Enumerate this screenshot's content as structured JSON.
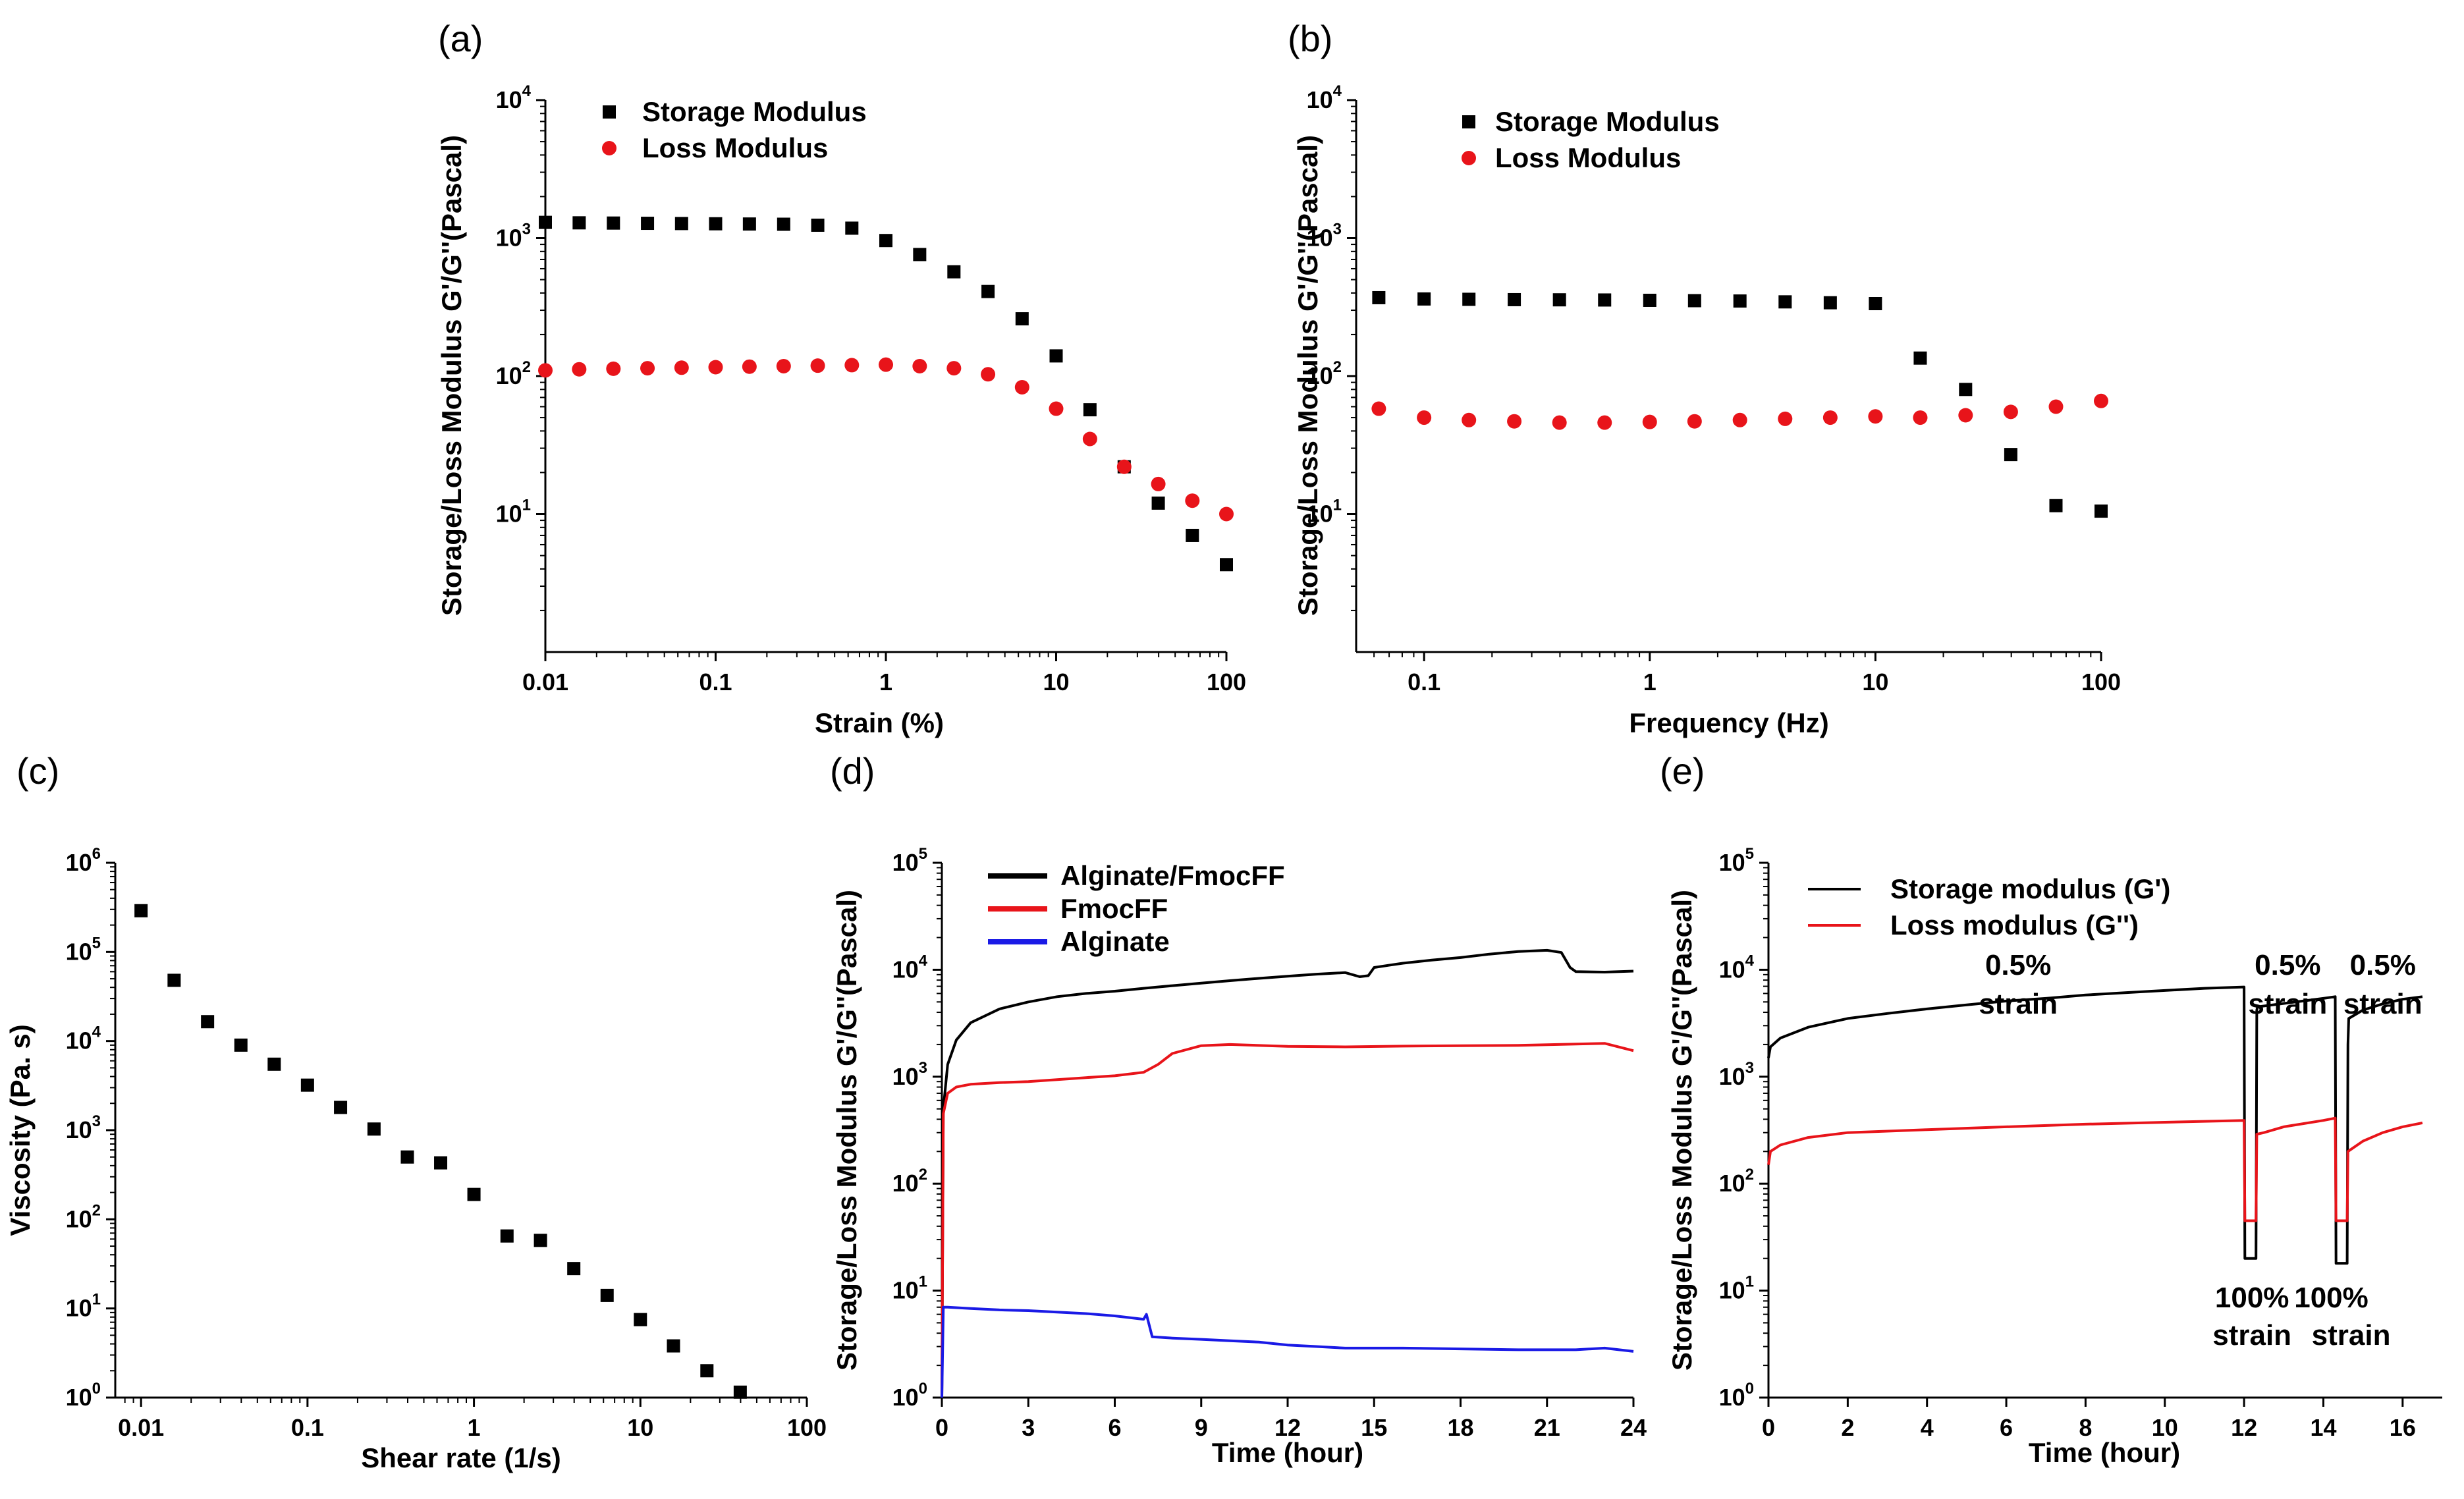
{
  "chart_data": [
    {
      "type": "scatter",
      "panel_label": "(a)",
      "xlabel": "Strain (%)",
      "ylabel": "Storage/Loss Modulus G'/G''(Pascal)",
      "xscale": "log",
      "yscale": "log",
      "xlim": [
        0.01,
        100
      ],
      "ylim": [
        1,
        10000
      ],
      "xticks": [
        {
          "v": 0.01,
          "t": "0.01"
        },
        {
          "v": 0.1,
          "t": "0.1"
        },
        {
          "v": 1,
          "t": "1"
        },
        {
          "v": 10,
          "t": "10"
        },
        {
          "v": 100,
          "t": "100"
        }
      ],
      "yticks": [
        {
          "v": 10,
          "e": "1"
        },
        {
          "v": 100,
          "e": "2"
        },
        {
          "v": 1000,
          "e": "3"
        },
        {
          "v": 10000,
          "e": "4"
        }
      ],
      "legend_position": "top-left",
      "series": [
        {
          "name": "Storage Modulus",
          "marker": "square",
          "color": "#000000",
          "x": [
            0.01,
            0.0158,
            0.0251,
            0.0398,
            0.0631,
            0.1,
            0.158,
            0.251,
            0.398,
            0.631,
            1,
            1.58,
            2.51,
            3.98,
            6.31,
            10,
            15.8,
            25.1,
            39.8,
            63.1,
            100
          ],
          "y": [
            1300,
            1290,
            1285,
            1280,
            1275,
            1270,
            1265,
            1260,
            1240,
            1180,
            960,
            760,
            570,
            410,
            260,
            140,
            57,
            22,
            12,
            7,
            4.3
          ]
        },
        {
          "name": "Loss Modulus",
          "marker": "circle",
          "color": "#e8141a",
          "x": [
            0.01,
            0.0158,
            0.0251,
            0.0398,
            0.0631,
            0.1,
            0.158,
            0.251,
            0.398,
            0.631,
            1,
            1.58,
            2.51,
            3.98,
            6.31,
            10,
            15.8,
            25.1,
            39.8,
            63.1,
            100
          ],
          "y": [
            110,
            112,
            113,
            114,
            115,
            116,
            117,
            118,
            119,
            120,
            121,
            118,
            114,
            103,
            83,
            58,
            35,
            22,
            16.5,
            12.5,
            10
          ]
        }
      ]
    },
    {
      "type": "scatter",
      "panel_label": "(b)",
      "xlabel": "Frequency (Hz)",
      "ylabel": "Storage/Loss Modulus G'/G''(Pascal)",
      "xscale": "log",
      "yscale": "log",
      "xlim": [
        0.05,
        100
      ],
      "ylim": [
        1,
        10000
      ],
      "xticks": [
        {
          "v": 0.1,
          "t": "0.1"
        },
        {
          "v": 1,
          "t": "1"
        },
        {
          "v": 10,
          "t": "10"
        },
        {
          "v": 100,
          "t": "100"
        }
      ],
      "yticks": [
        {
          "v": 10,
          "e": "1"
        },
        {
          "v": 100,
          "e": "2"
        },
        {
          "v": 1000,
          "e": "3"
        },
        {
          "v": 10000,
          "e": "4"
        }
      ],
      "legend_position": "top-left",
      "series": [
        {
          "name": "Storage Modulus",
          "marker": "square",
          "color": "#000000",
          "x": [
            0.063,
            0.1,
            0.158,
            0.251,
            0.398,
            0.631,
            1,
            1.58,
            2.51,
            3.98,
            6.31,
            10,
            15.8,
            25.1,
            39.8,
            63.1,
            100
          ],
          "y": [
            370,
            362,
            360,
            358,
            357,
            356,
            354,
            352,
            350,
            345,
            340,
            335,
            135,
            80,
            27,
            11.5,
            10.5
          ]
        },
        {
          "name": "Loss Modulus",
          "marker": "circle",
          "color": "#e8141a",
          "x": [
            0.063,
            0.1,
            0.158,
            0.251,
            0.398,
            0.631,
            1,
            1.58,
            2.51,
            3.98,
            6.31,
            10,
            15.8,
            25.1,
            39.8,
            63.1,
            100
          ],
          "y": [
            58,
            50,
            48,
            47,
            46,
            46,
            46.5,
            47,
            48,
            49,
            50,
            51,
            50,
            52,
            55,
            60,
            66
          ]
        }
      ]
    },
    {
      "type": "scatter",
      "panel_label": "(c)",
      "xlabel": "Shear rate (1/s)",
      "ylabel": "Viscosity (Pa. s)",
      "xscale": "log",
      "yscale": "log",
      "xlim": [
        0.007,
        100
      ],
      "ylim": [
        1,
        1000000
      ],
      "xticks": [
        {
          "v": 0.01,
          "t": "0.01"
        },
        {
          "v": 0.1,
          "t": "0.1"
        },
        {
          "v": 1,
          "t": "1"
        },
        {
          "v": 10,
          "t": "10"
        },
        {
          "v": 100,
          "t": "100"
        }
      ],
      "yticks": [
        {
          "v": 1,
          "e": "0"
        },
        {
          "v": 10,
          "e": "1"
        },
        {
          "v": 100,
          "e": "2"
        },
        {
          "v": 1000,
          "e": "3"
        },
        {
          "v": 10000,
          "e": "4"
        },
        {
          "v": 100000,
          "e": "5"
        },
        {
          "v": 1000000,
          "e": "6"
        }
      ],
      "series": [
        {
          "name": "Viscosity",
          "marker": "square",
          "color": "#000000",
          "x": [
            0.01,
            0.0158,
            0.0251,
            0.0398,
            0.0631,
            0.1,
            0.158,
            0.251,
            0.398,
            0.631,
            1,
            1.58,
            2.51,
            3.98,
            6.31,
            10,
            15.8,
            25.1,
            39.8
          ],
          "y": [
            290000,
            48000,
            16500,
            9000,
            5500,
            3200,
            1800,
            1030,
            500,
            430,
            190,
            65,
            58,
            28,
            14,
            7.5,
            3.8,
            2.0,
            1.15
          ]
        }
      ]
    },
    {
      "type": "line",
      "panel_label": "(d)",
      "xlabel": "Time (hour)",
      "ylabel": "Storage/Loss Modulus G'/G''(Pascal)",
      "xscale": "linear",
      "yscale": "log",
      "xlim": [
        0,
        24
      ],
      "ylim": [
        1,
        100000
      ],
      "xticks": [
        {
          "v": 0,
          "t": "0"
        },
        {
          "v": 3,
          "t": "3"
        },
        {
          "v": 6,
          "t": "6"
        },
        {
          "v": 9,
          "t": "9"
        },
        {
          "v": 12,
          "t": "12"
        },
        {
          "v": 15,
          "t": "15"
        },
        {
          "v": 18,
          "t": "18"
        },
        {
          "v": 21,
          "t": "21"
        },
        {
          "v": 24,
          "t": "24"
        }
      ],
      "yticks": [
        {
          "v": 1,
          "e": "0"
        },
        {
          "v": 10,
          "e": "1"
        },
        {
          "v": 100,
          "e": "2"
        },
        {
          "v": 1000,
          "e": "3"
        },
        {
          "v": 10000,
          "e": "4"
        },
        {
          "v": 100000,
          "e": "5"
        }
      ],
      "legend_position": "top-left",
      "series": [
        {
          "name": "Alginate/FmocFF",
          "color": "#000000",
          "x": [
            0,
            0.05,
            0.2,
            0.5,
            1,
            2,
            3,
            4,
            5,
            6,
            7,
            8,
            9,
            10,
            11,
            12,
            13,
            14,
            14.5,
            14.8,
            15,
            15.5,
            16,
            17,
            18,
            19,
            20,
            21,
            21.5,
            21.8,
            22,
            23,
            24
          ],
          "y": [
            1,
            500,
            1300,
            2200,
            3200,
            4300,
            5000,
            5600,
            6000,
            6300,
            6700,
            7100,
            7500,
            7900,
            8300,
            8700,
            9100,
            9400,
            8600,
            8800,
            10500,
            11000,
            11500,
            12300,
            13000,
            14000,
            14800,
            15200,
            14500,
            10500,
            9600,
            9500,
            9700
          ]
        },
        {
          "name": "FmocFF",
          "color": "#e8141a",
          "x": [
            0,
            0.05,
            0.2,
            0.5,
            1,
            2,
            3,
            4,
            5,
            6,
            7,
            7.5,
            8,
            9,
            10,
            12,
            14,
            16,
            18,
            20,
            22,
            23,
            24
          ],
          "y": [
            1,
            450,
            700,
            800,
            850,
            880,
            900,
            940,
            980,
            1020,
            1100,
            1300,
            1650,
            1950,
            2000,
            1920,
            1900,
            1930,
            1950,
            1960,
            2020,
            2050,
            1750
          ]
        },
        {
          "name": "Alginate",
          "color": "#1a1ae6",
          "x": [
            0,
            0.05,
            0.2,
            1,
            2,
            3,
            4,
            5,
            6,
            7,
            7.1,
            7.3,
            8,
            9,
            10,
            11,
            12,
            13,
            14,
            16,
            18,
            20,
            22,
            23,
            24
          ],
          "y": [
            1,
            7,
            7,
            6.8,
            6.6,
            6.5,
            6.3,
            6.1,
            5.8,
            5.4,
            6.0,
            3.7,
            3.6,
            3.5,
            3.4,
            3.3,
            3.1,
            3.0,
            2.9,
            2.9,
            2.85,
            2.8,
            2.8,
            2.9,
            2.7
          ]
        }
      ]
    },
    {
      "type": "line",
      "panel_label": "(e)",
      "xlabel": "Time (hour)",
      "ylabel": "Storage/Loss Modulus G'/G''(Pascal)",
      "xscale": "linear",
      "yscale": "log",
      "xlim": [
        0,
        17
      ],
      "ylim": [
        1,
        100000
      ],
      "xticks": [
        {
          "v": 0,
          "t": "0"
        },
        {
          "v": 2,
          "t": "2"
        },
        {
          "v": 4,
          "t": "4"
        },
        {
          "v": 6,
          "t": "6"
        },
        {
          "v": 8,
          "t": "8"
        },
        {
          "v": 10,
          "t": "10"
        },
        {
          "v": 12,
          "t": "12"
        },
        {
          "v": 14,
          "t": "14"
        },
        {
          "v": 16,
          "t": "16"
        }
      ],
      "yticks": [
        {
          "v": 1,
          "e": "0"
        },
        {
          "v": 10,
          "e": "1"
        },
        {
          "v": 100,
          "e": "2"
        },
        {
          "v": 1000,
          "e": "3"
        },
        {
          "v": 10000,
          "e": "4"
        },
        {
          "v": 100000,
          "e": "5"
        }
      ],
      "legend_position": "top-left",
      "annotations": [
        {
          "text": "0.5%",
          "x": 6.3,
          "y": 9000
        },
        {
          "text": "strain",
          "x": 6.3,
          "y": 3900
        },
        {
          "text": "0.5%",
          "x": 13.1,
          "y": 9000
        },
        {
          "text": "strain",
          "x": 13.1,
          "y": 3900
        },
        {
          "text": "0.5%",
          "x": 15.5,
          "y": 9000
        },
        {
          "text": "strain",
          "x": 15.5,
          "y": 3900
        },
        {
          "text": "100%",
          "x": 12.2,
          "y": 7
        },
        {
          "text": "strain",
          "x": 12.2,
          "y": 3.1
        },
        {
          "text": "100%",
          "x": 14.2,
          "y": 7
        },
        {
          "text": "strain",
          "x": 14.7,
          "y": 3.1
        }
      ],
      "series": [
        {
          "name": "Storage modulus (G')",
          "color": "#000000",
          "x": [
            0,
            0.05,
            0.3,
            1,
            2,
            3,
            4,
            5,
            6,
            7,
            8,
            9,
            10,
            11,
            12,
            12.02,
            12.3,
            12.32,
            12.34,
            14,
            14.3,
            14.32,
            14.6,
            14.62,
            14.64,
            15,
            15.5,
            16,
            16.5
          ],
          "y": [
            1500,
            1900,
            2300,
            2900,
            3500,
            3900,
            4300,
            4700,
            5100,
            5400,
            5800,
            6100,
            6400,
            6700,
            6900,
            20,
            20,
            4200,
            4500,
            5400,
            5600,
            18,
            18,
            2000,
            3500,
            4200,
            4800,
            5300,
            5600
          ]
        },
        {
          "name": "Loss modulus (G'')",
          "color": "#e8141a",
          "x": [
            0,
            0.05,
            0.3,
            1,
            2,
            4,
            6,
            8,
            10,
            12,
            12.02,
            12.3,
            12.32,
            12.5,
            13,
            14,
            14.3,
            14.32,
            14.6,
            14.62,
            15,
            15.5,
            16,
            16.5
          ],
          "y": [
            150,
            200,
            230,
            270,
            300,
            320,
            340,
            360,
            375,
            390,
            45,
            45,
            290,
            300,
            340,
            390,
            410,
            45,
            45,
            200,
            250,
            300,
            340,
            370
          ]
        }
      ]
    }
  ]
}
